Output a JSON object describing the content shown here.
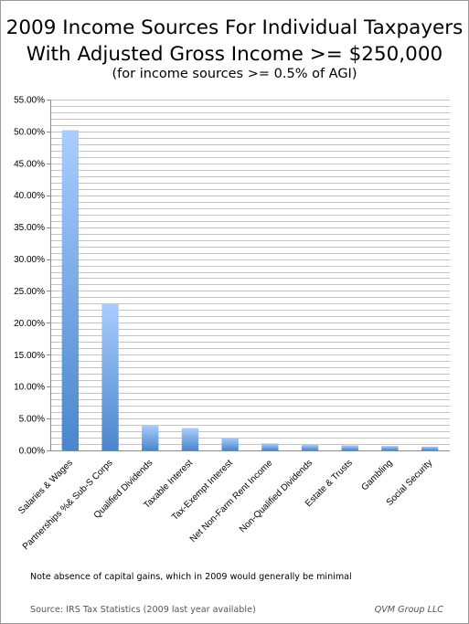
{
  "chart_data": {
    "type": "bar",
    "title": "2009 Income Sources For Individual Taxpayers\nWith Adjusted Gross Income >= $250,000",
    "title_lines": [
      "2009 Income Sources For Individual Taxpayers",
      "With Adjusted Gross Income >= $250,000"
    ],
    "subtitle": "(for income sources >= 0.5% of AGI)",
    "xlabel": "",
    "ylabel": "",
    "ylim": [
      0,
      55
    ],
    "y_ticks": [
      "0.00%",
      "5.00%",
      "10.00%",
      "15.00%",
      "20.00%",
      "25.00%",
      "30.00%",
      "35.00%",
      "40.00%",
      "45.00%",
      "50.00%",
      "55.00%"
    ],
    "y_tick_values": [
      0,
      5,
      10,
      15,
      20,
      25,
      30,
      35,
      40,
      45,
      50,
      55
    ],
    "grid": true,
    "minor_grid_step": 1,
    "legend": "none",
    "categories": [
      "Salaries & Wages",
      "Partnerships %& Sub-S Corps",
      "Qualified Dividends",
      "Taxable Interest",
      "Tax-Exempt Interest",
      "Net Non-Farm Rent Income",
      "Non-Qualified Dividends",
      "Estate & Trusts",
      "Gambling",
      "Social Security"
    ],
    "values": [
      50.2,
      23.0,
      4.0,
      3.5,
      2.0,
      1.1,
      0.9,
      0.8,
      0.7,
      0.6
    ],
    "unit": "%",
    "colors": {
      "bar_top": "#aacdff",
      "bar_bottom": "#4a86cc",
      "grid": "#c4c4c4",
      "axis": "#8a8a8a"
    }
  },
  "footer": {
    "note": "Note absence of capital gains, which in 2009 would generally be minimal",
    "source": "Source:  IRS Tax Statistics (2009 last year available)",
    "credit": "QVM Group LLC"
  }
}
